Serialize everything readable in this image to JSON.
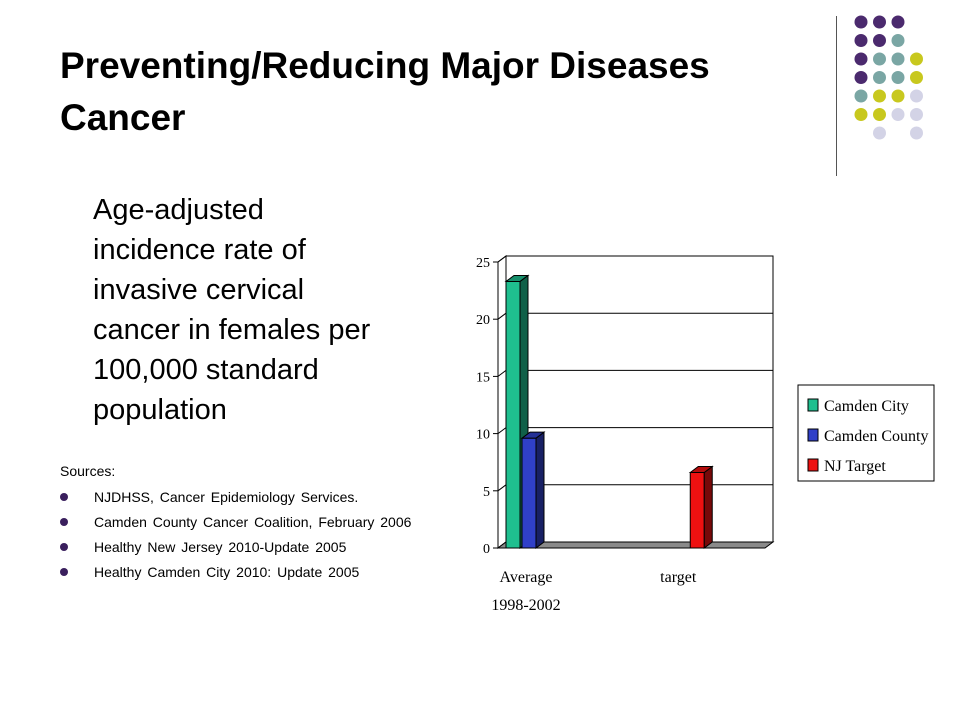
{
  "title": {
    "line1": "Preventing/Reducing Major Diseases",
    "line2": "Cancer"
  },
  "body": {
    "lines": [
      "Age-adjusted",
      "incidence rate of",
      "invasive cervical",
      "cancer in females per",
      "100,000 standard",
      "population"
    ]
  },
  "sources": {
    "label": "Sources:",
    "items": [
      "NJDHSS, Cancer Epidemiology Services.",
      "Camden County Cancer Coalition, February 2006",
      "Healthy New Jersey 2010-Update 2005",
      "Healthy Camden City 2010: Update 2005"
    ]
  },
  "colors": {
    "accent_purple": "#4b2a6e",
    "accent_teal": "#7aa6a4",
    "accent_yellow": "#c8c81e",
    "accent_lavender": "#d3d3e6"
  },
  "chart_data": {
    "type": "bar",
    "categories": [
      "Average 1998-2002",
      "target"
    ],
    "category_label_lines": [
      [
        "Average",
        "1998-2002"
      ],
      [
        "target"
      ]
    ],
    "series": [
      {
        "name": "Camden City",
        "color": "#1fbf8f",
        "values": [
          23.3,
          null
        ]
      },
      {
        "name": "Camden County",
        "color": "#3040c8",
        "values": [
          9.6,
          null
        ]
      },
      {
        "name": "NJ Target",
        "color": "#ee1111",
        "values": [
          null,
          6.6
        ]
      }
    ],
    "ylim": [
      0,
      25
    ],
    "yticks": [
      0,
      5,
      10,
      15,
      20,
      25
    ],
    "grid": true,
    "legend": "right",
    "style": "3d"
  }
}
